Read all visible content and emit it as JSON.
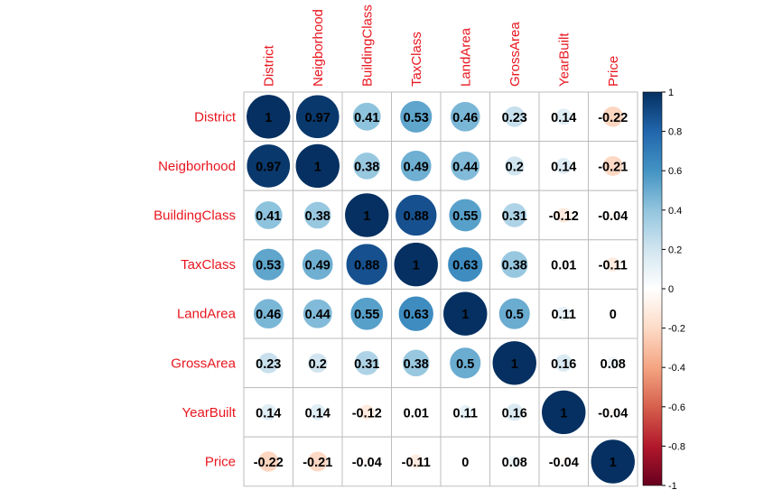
{
  "chart_data": {
    "type": "heatmap",
    "variables": [
      "District",
      "Neigborhood",
      "BuildingClass",
      "TaxClass",
      "LandArea",
      "GrossArea",
      "YearBuilt",
      "Price"
    ],
    "matrix": [
      [
        1,
        0.97,
        0.41,
        0.53,
        0.46,
        0.23,
        0.14,
        -0.22
      ],
      [
        0.97,
        1,
        0.38,
        0.49,
        0.44,
        0.2,
        0.14,
        -0.21
      ],
      [
        0.41,
        0.38,
        1,
        0.88,
        0.55,
        0.31,
        -0.12,
        -0.04
      ],
      [
        0.53,
        0.49,
        0.88,
        1,
        0.63,
        0.38,
        0.01,
        -0.11
      ],
      [
        0.46,
        0.44,
        0.55,
        0.63,
        1,
        0.5,
        0.11,
        0
      ],
      [
        0.23,
        0.2,
        0.31,
        0.38,
        0.5,
        1,
        0.16,
        0.08
      ],
      [
        0.14,
        0.14,
        -0.12,
        0.01,
        0.11,
        0.16,
        1,
        -0.04
      ],
      [
        -0.22,
        -0.21,
        -0.04,
        -0.11,
        0,
        0.08,
        -0.04,
        1
      ]
    ],
    "colorbar": {
      "ticks": [
        "1",
        "0.8",
        "0.6",
        "0.4",
        "0.2",
        "0",
        "-0.2",
        "-0.4",
        "-0.6",
        "-0.8",
        "-1"
      ],
      "range": [
        -1,
        1
      ],
      "colors": [
        "#67001F",
        "#B2182B",
        "#D6604D",
        "#F4A582",
        "#FDDBC7",
        "#FFFFFF",
        "#D1E5F0",
        "#92C5DE",
        "#4393C3",
        "#2166AC",
        "#053061"
      ]
    },
    "label_color": "#e8161f",
    "grid_color": "#bebebe"
  }
}
